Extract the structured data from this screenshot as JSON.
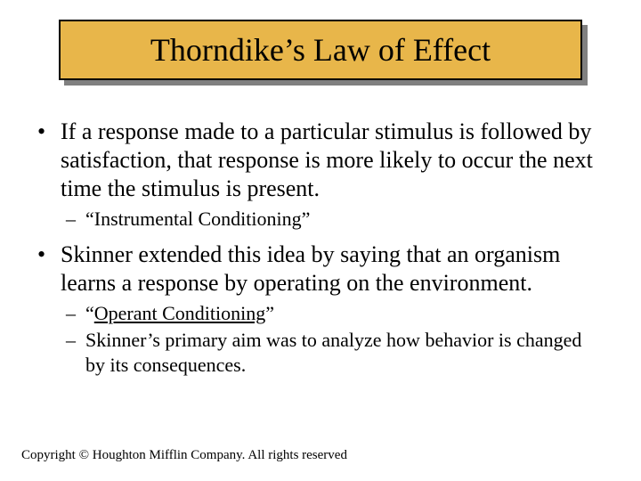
{
  "title": {
    "text": "Thorndike’s Law of Effect",
    "background_color": "#e8b64a",
    "border_color": "#000000",
    "shadow_color": "#808080",
    "font_size_pt": 36
  },
  "bullets": [
    {
      "level": 1,
      "text": "If a response made to a particular stimulus is followed by satisfaction, that response is more likely to occur the next time the stimulus is present."
    },
    {
      "level": 2,
      "text": "“Instrumental Conditioning”"
    },
    {
      "level": 1,
      "text": "Skinner extended this idea by saying that an organism learns a response by operating on the environment."
    },
    {
      "level": 2,
      "text_prefix": "“",
      "text_underlined": "Operant Conditioning",
      "text_suffix": "”"
    },
    {
      "level": 2,
      "text": "Skinner’s primary aim was to analyze how behavior is changed by its consequences."
    }
  ],
  "copyright": "Copyright © Houghton Mifflin Company.  All rights reserved",
  "style": {
    "page_background": "#ffffff",
    "body_font": "Times New Roman",
    "l1_font_size_pt": 26,
    "l2_font_size_pt": 22,
    "text_color": "#000000",
    "l1_marker": "•",
    "l2_marker": "–"
  }
}
